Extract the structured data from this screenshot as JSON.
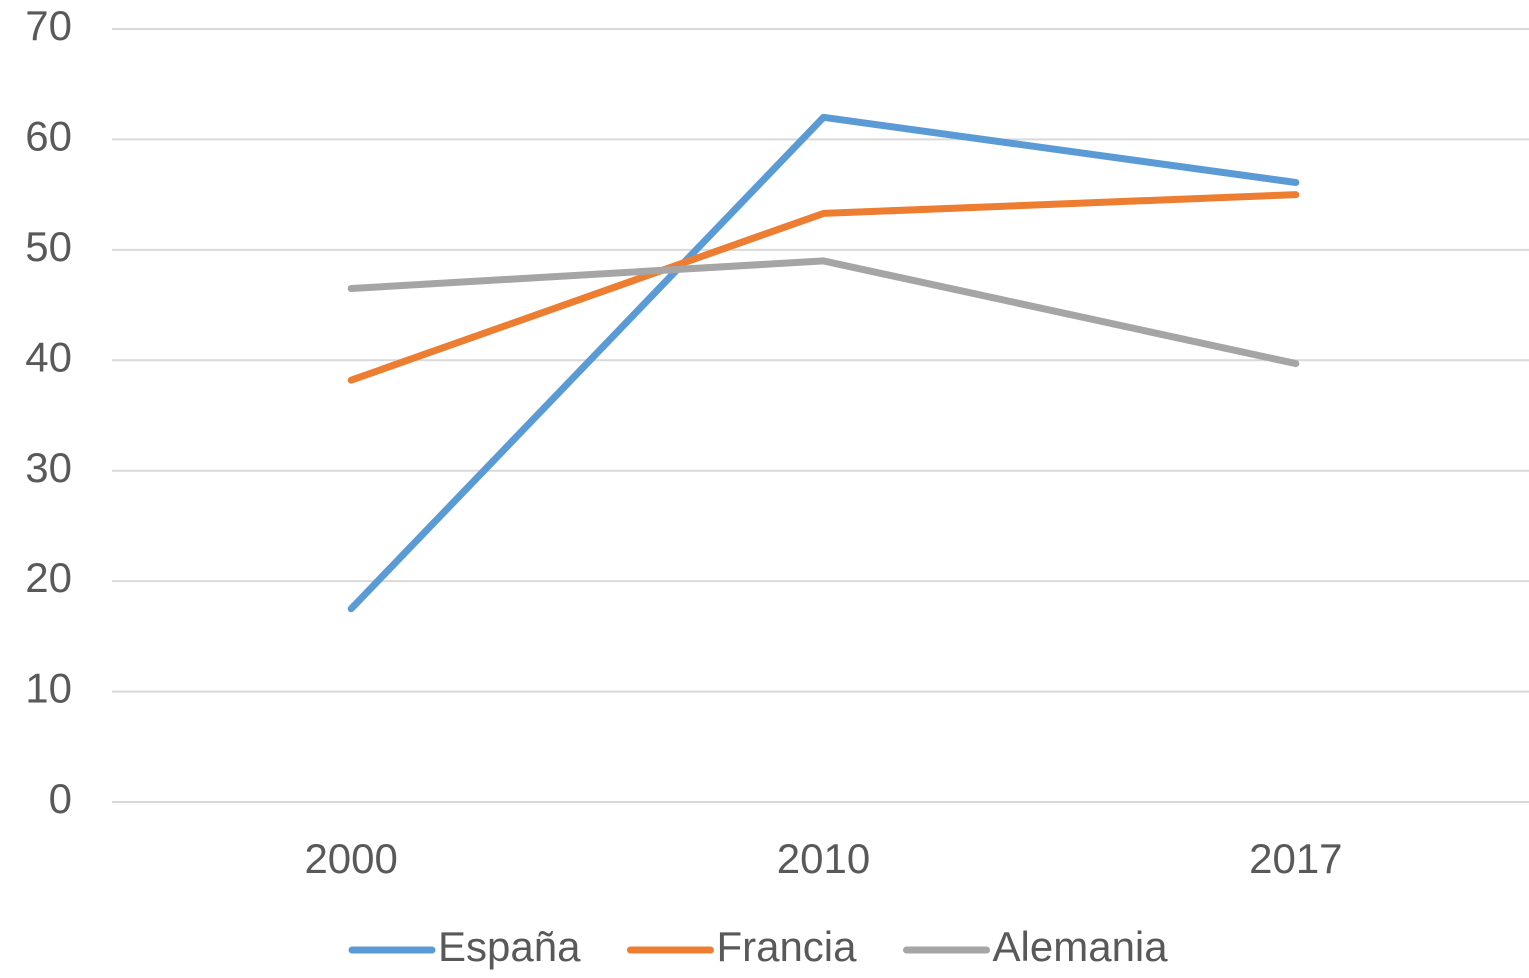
{
  "chart_data": {
    "type": "line",
    "categories": [
      "2000",
      "2010",
      "2017"
    ],
    "series": [
      {
        "name": "España",
        "color": "#5b9bd5",
        "values": [
          17.5,
          62.0,
          56.1
        ]
      },
      {
        "name": "Francia",
        "color": "#ed7d31",
        "values": [
          38.2,
          53.3,
          55.0
        ]
      },
      {
        "name": "Alemania",
        "color": "#a5a5a5",
        "values": [
          46.5,
          49.0,
          39.7
        ]
      }
    ],
    "ylim": [
      0,
      70
    ],
    "yticks": [
      0,
      10,
      20,
      30,
      40,
      50,
      60,
      70
    ],
    "grid": true,
    "legend": "bottom"
  }
}
